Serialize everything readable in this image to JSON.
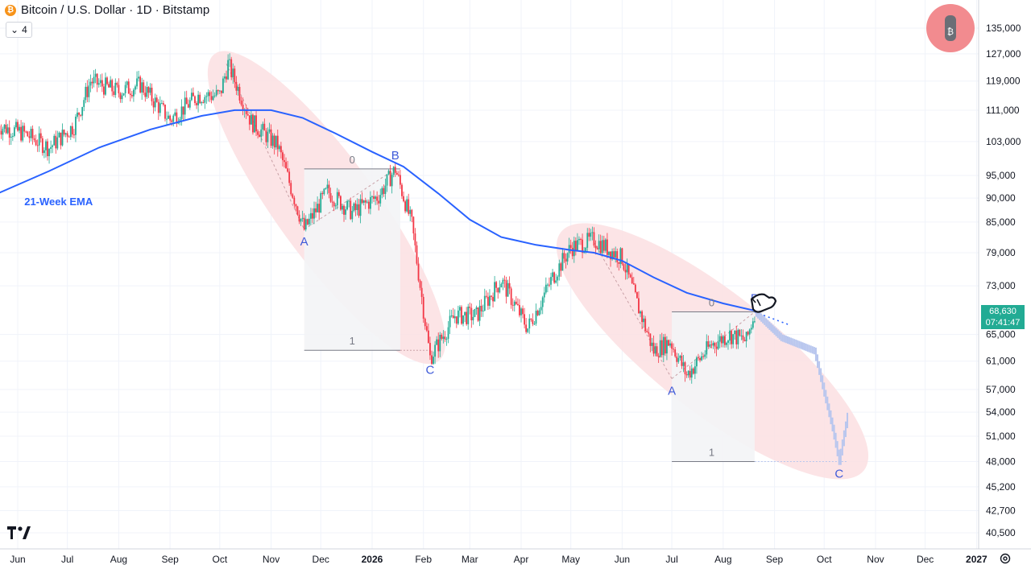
{
  "header": {
    "title": "Bitcoin / U.S. Dollar · 1D · Bitstamp",
    "symbol_icon": "bitcoin-icon",
    "layer_count": "4"
  },
  "price_tag": {
    "price": "68,630",
    "countdown": "07:41:47",
    "color": "#22ab94"
  },
  "colors": {
    "up": "#22ab94",
    "down": "#f23645",
    "ema": "#2962ff",
    "ellipse": "#fcdfe2",
    "projection": "#b8c6ee"
  },
  "chart_data": {
    "type": "line",
    "title": "Bitcoin / U.S. Dollar · 1D · Bitstamp",
    "x_tick_labels": [
      "Jun",
      "Jul",
      "Aug",
      "Sep",
      "Oct",
      "Nov",
      "Dec",
      "2026",
      "Feb",
      "Mar",
      "Apr",
      "May",
      "Jun",
      "Jul",
      "Aug",
      "Sep",
      "Oct",
      "Nov",
      "Dec",
      "2027"
    ],
    "y_scale": "log",
    "y_tick_labels": [
      "135,000",
      "127,000",
      "119,000",
      "111,000",
      "103,000",
      "95,000",
      "90,000",
      "85,000",
      "79,000",
      "73,000",
      "65,000",
      "61,000",
      "57,000",
      "54,000",
      "51,000",
      "48,000",
      "45,200",
      "42,700",
      "40,500"
    ],
    "y_ticks": [
      135000,
      127000,
      119000,
      111000,
      103000,
      95000,
      90000,
      85000,
      79000,
      73000,
      65000,
      61000,
      57000,
      54000,
      51000,
      48000,
      45200,
      42700,
      40500
    ],
    "ylim": [
      39500,
      142000
    ],
    "grid": true,
    "series": [
      {
        "name": "21-Week EMA",
        "color": "#2962ff",
        "x": [
          "2025-05-20",
          "2025-06-20",
          "2025-07-20",
          "2025-08-20",
          "2025-09-20",
          "2025-10-10",
          "2025-11-01",
          "2025-11-20",
          "2025-12-10",
          "2026-01-01",
          "2026-01-20",
          "2026-02-10",
          "2026-03-01",
          "2026-03-20",
          "2026-04-10",
          "2026-05-01",
          "2026-05-15",
          "2026-06-01",
          "2026-06-20",
          "2026-07-10",
          "2026-08-01",
          "2026-08-20"
        ],
        "y": [
          91000,
          96000,
          101500,
          106000,
          109500,
          111000,
          111000,
          109000,
          105000,
          100500,
          97000,
          91000,
          85500,
          82000,
          80500,
          79500,
          79000,
          77500,
          74500,
          71800,
          70000,
          68800
        ]
      },
      {
        "name": "",
        "type": "candlestick",
        "note_color": "#22ab94",
        "x": [
          "2025-05-20",
          "2025-06-05",
          "2025-06-20",
          "2025-07-05",
          "2025-07-15",
          "2025-08-01",
          "2025-08-14",
          "2025-09-01",
          "2025-09-18",
          "2025-10-01",
          "2025-10-06",
          "2025-10-20",
          "2025-11-05",
          "2025-11-21",
          "2025-12-05",
          "2025-12-20",
          "2026-01-05",
          "2026-01-15",
          "2026-01-25",
          "2026-02-05",
          "2026-02-20",
          "2026-03-05",
          "2026-03-20",
          "2026-04-05",
          "2026-04-20",
          "2026-05-01",
          "2026-05-15",
          "2026-06-01",
          "2026-06-10",
          "2026-06-20",
          "2026-06-30",
          "2026-07-10",
          "2026-07-25",
          "2026-08-05",
          "2026-08-15",
          "2026-08-20"
        ],
        "y": [
          107000,
          105000,
          101500,
          107000,
          119000,
          116000,
          118000,
          108500,
          115000,
          115000,
          124000,
          108000,
          102000,
          83500,
          91500,
          87000,
          90500,
          96500,
          84500,
          61500,
          68000,
          68000,
          74000,
          66000,
          74500,
          80000,
          81500,
          78000,
          70000,
          62500,
          64000,
          59000,
          63500,
          65000,
          64000,
          68600
        ]
      },
      {
        "name": "",
        "type": "projection",
        "color": "#b8c6ee",
        "x": [
          "2026-08-20",
          "2026-08-28",
          "2026-09-05",
          "2026-09-15",
          "2026-09-25",
          "2026-10-01",
          "2026-10-06",
          "2026-10-10",
          "2026-10-15"
        ],
        "y": [
          68600,
          66500,
          64500,
          63500,
          62500,
          56500,
          52000,
          48000,
          53500
        ]
      }
    ],
    "annotations": [
      {
        "label": "B",
        "x": "2026-01-15",
        "y": 96500
      },
      {
        "label": "A",
        "x": "2025-11-21",
        "y": 83500
      },
      {
        "label": "C",
        "x": "2026-02-05",
        "y": 61500
      },
      {
        "label": "B",
        "x": "2026-08-20",
        "y": 68600
      },
      {
        "label": "A",
        "x": "2026-07-01",
        "y": 58500
      },
      {
        "label": "C",
        "x": "2026-10-10",
        "y": 48000
      },
      {
        "label": "0",
        "x": "2025-12-20",
        "y": 96500
      },
      {
        "label": "1",
        "x": "2025-12-20",
        "y": 62600
      },
      {
        "label": "0",
        "x": "2026-07-25",
        "y": 68600
      },
      {
        "label": "1",
        "x": "2026-07-25",
        "y": 48000
      },
      {
        "label": "21-Week EMA",
        "x": "2025-06-05",
        "y": 88500
      }
    ]
  }
}
